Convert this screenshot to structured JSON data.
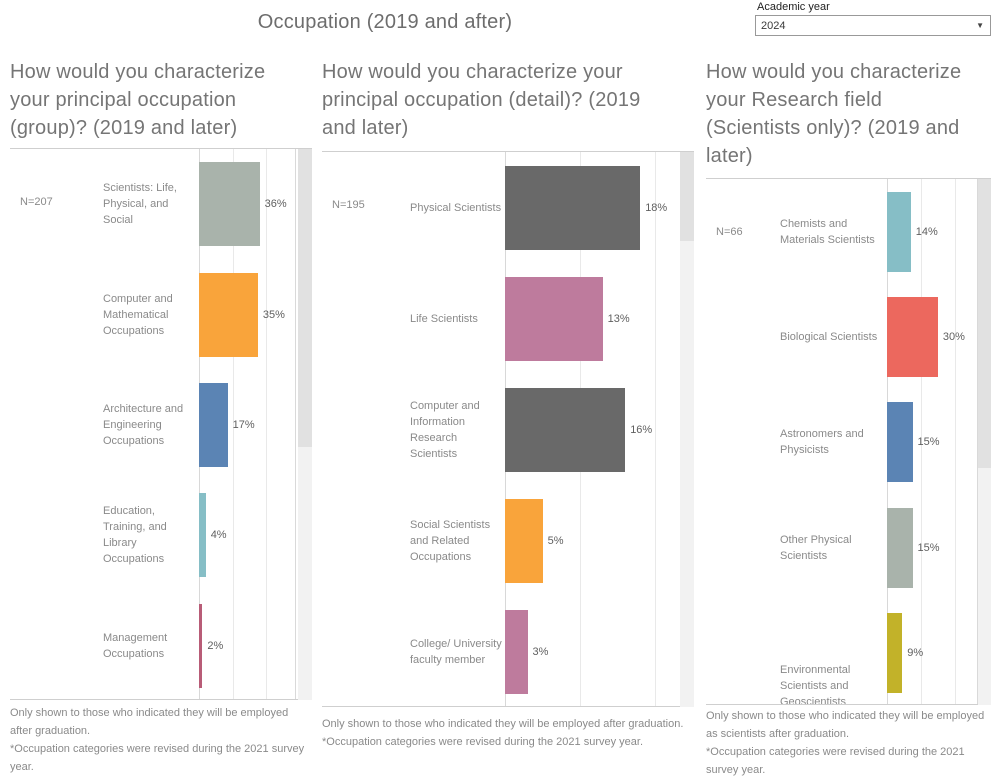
{
  "header": {
    "title": "Occupation (2019 and after)"
  },
  "filter": {
    "label": "Academic year",
    "value": "2024"
  },
  "chart_data": [
    {
      "type": "bar",
      "orientation": "horizontal",
      "title": "How would you characterize your principal occupation (group)? (2019 and later)",
      "n_label": "N=207",
      "categories": [
        "Scientists: Life, Physical, and Social",
        "Computer and Mathematical Occupations",
        "Architecture and Engineering Occupations",
        "Education, Training, and Library Occupations",
        "Management Occupations"
      ],
      "values": [
        36,
        35,
        17,
        4,
        2
      ],
      "value_labels": [
        "36%",
        "35%",
        "17%",
        "4%",
        "2%"
      ],
      "bar_colors": [
        "#A9B3AB",
        "#F9A43B",
        "#5B84B4",
        "#86BEC6",
        "#B85C77"
      ],
      "axis_max": 57,
      "gridlines_pct": [
        0,
        20,
        40
      ],
      "legend": "none",
      "footnotes": [
        "Only shown to those who indicated they will be employed after graduation.",
        "*Occupation categories were revised during the 2021 survey year."
      ]
    },
    {
      "type": "bar",
      "orientation": "horizontal",
      "title": "How would you characterize your principal occupation (detail)? (2019 and later)",
      "n_label": "N=195",
      "categories": [
        "Physical Scientists",
        "Life Scientists",
        "Computer and Information Research Scientists",
        "Social Scientists and Related Occupations",
        "College/ University faculty member"
      ],
      "values": [
        18,
        13,
        16,
        5,
        3
      ],
      "value_labels": [
        "18%",
        "13%",
        "16%",
        "5%",
        "3%"
      ],
      "bar_colors": [
        "#696969",
        "#BE7B9D",
        "#696969",
        "#F9A43B",
        "#BE7B9D"
      ],
      "axis_max": 23.3,
      "gridlines_pct": [
        0,
        10,
        20
      ],
      "legend": "none",
      "footnotes": [
        "Only shown to those who indicated they will be employed after graduation.",
        "*Occupation categories were revised during the 2021 survey year."
      ]
    },
    {
      "type": "bar",
      "orientation": "horizontal",
      "title": "How would you characterize your Research field (Scientists only)? (2019 and later)",
      "n_label": "N=66",
      "categories": [
        "Chemists and Materials Scientists",
        "Biological Scientists",
        "Astronomers and Physicists",
        "Other Physical Scientists",
        "Environmental Scientists and Geoscientists"
      ],
      "values": [
        14,
        30,
        15,
        15,
        9
      ],
      "value_labels": [
        "14%",
        "30%",
        "15%",
        "15%",
        "9%"
      ],
      "bar_colors": [
        "#86BEC6",
        "#EC685E",
        "#5B84B4",
        "#A9B3AB",
        "#C2B229"
      ],
      "axis_max": 53,
      "gridlines_pct": [
        0,
        20,
        40
      ],
      "legend": "none",
      "footnotes": [
        "Only shown to those who indicated they will be employed as scientists after graduation.",
        "*Occupation categories were revised during the 2021 survey year."
      ]
    }
  ]
}
